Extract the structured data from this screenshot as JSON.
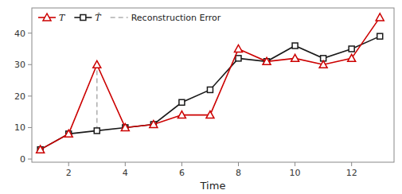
{
  "chart_data": {
    "type": "line",
    "xlabel": "Time",
    "series": [
      {
        "name": "T",
        "color": "#cc0000",
        "marker": "triangle",
        "line_style": "solid",
        "x": [
          1,
          2,
          3,
          4,
          5,
          6,
          7,
          8,
          9,
          10,
          11,
          12,
          13
        ],
        "values": [
          3,
          8,
          30,
          10,
          11,
          14,
          14,
          35,
          31,
          32,
          30,
          32,
          45
        ]
      },
      {
        "name": "T̂",
        "color": "#1a1a1a",
        "marker": "square",
        "line_style": "solid",
        "x": [
          1,
          2,
          3,
          4,
          5,
          6,
          7,
          8,
          9,
          10,
          11,
          12,
          13
        ],
        "values": [
          3,
          8,
          9,
          10,
          11,
          18,
          22,
          32,
          31,
          36,
          32,
          35,
          39
        ]
      },
      {
        "name": "Reconstruction Error",
        "color": "#b0b0b0",
        "line_style": "dashed",
        "x": [
          3,
          3
        ],
        "values": [
          9,
          30
        ]
      }
    ],
    "xlim": [
      0.7,
      13.5
    ],
    "ylim": [
      -1,
      48
    ],
    "xticks": [
      2,
      4,
      6,
      8,
      10,
      12
    ],
    "yticks": [
      0,
      10,
      20,
      30,
      40
    ],
    "grid": false,
    "legend": "upper left"
  }
}
